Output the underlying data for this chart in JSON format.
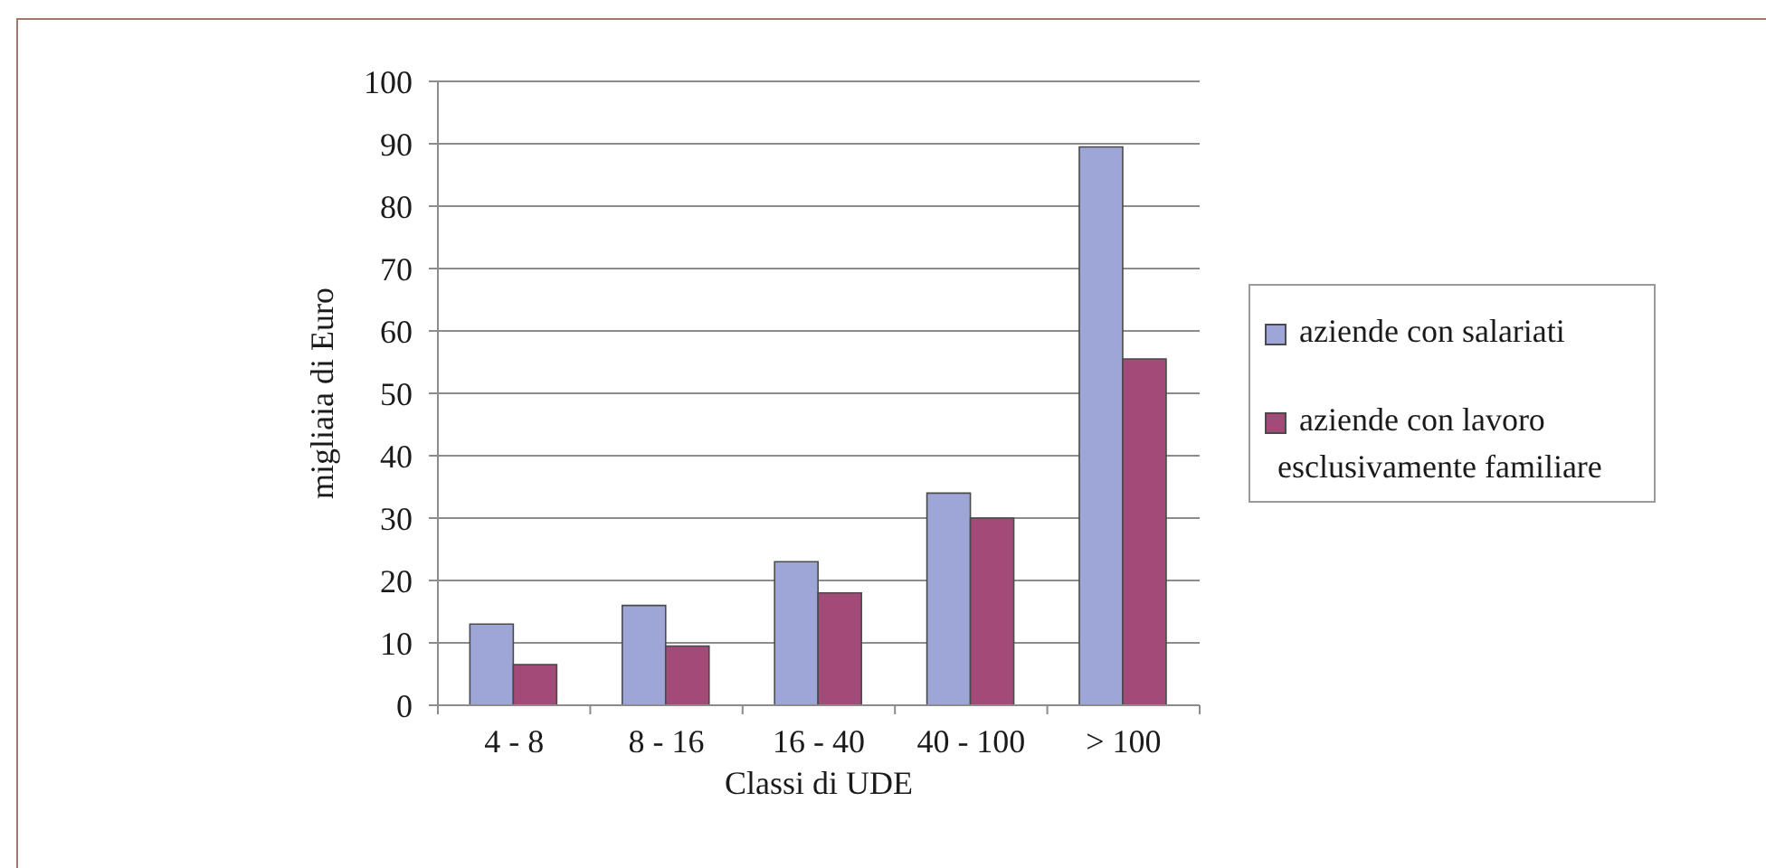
{
  "chart_data": {
    "type": "bar",
    "xlabel": "Classi di UDE",
    "ylabel": "migliaia di Euro",
    "categories": [
      "4 - 8",
      "8 - 16",
      "16 - 40",
      "40 - 100",
      "> 100"
    ],
    "series": [
      {
        "name": "aziende con salariati",
        "color": "#9ea6d8",
        "values": [
          13,
          16,
          23,
          34,
          89.5
        ]
      },
      {
        "name": "aziende con lavoro esclusivamente familiare",
        "color": "#a24a78",
        "values": [
          6.5,
          9.5,
          18,
          30,
          55.5
        ]
      }
    ],
    "ylim": [
      0,
      100
    ],
    "yticks": [
      0,
      10,
      20,
      30,
      40,
      50,
      60,
      70,
      80,
      90,
      100
    ],
    "grid": "y",
    "legend": "right"
  }
}
